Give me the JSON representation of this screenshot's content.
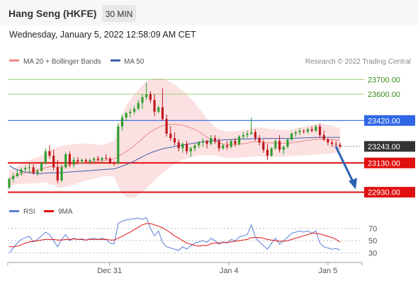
{
  "header": {
    "title": "Hang Seng (HKFE)",
    "interval": "30 MIN",
    "datetime": "Wednesday, January 5, 2022 12:58:09 AM CET"
  },
  "legend": {
    "ma20": "MA 20 + Bollinger Bands",
    "ma50": "MA 50",
    "credit": "Research © 2022 Trading Central",
    "rsi": "RSI",
    "ma9": "9MA"
  },
  "colors": {
    "bullish": "#2e9e2e",
    "bearish": "#c0151b",
    "ma20": "#ee8888",
    "bollinger": "#fbe1e1",
    "ma50": "#3f5fae",
    "resistance": "#2f67e6",
    "support": "#e01010",
    "target": "#9bd17a",
    "rsi": "#5b7fd6",
    "rsi_ma": "#e01010",
    "arrow": "#2d62b3",
    "current": "#333333"
  },
  "chart_data": [
    {
      "type": "candlestick",
      "x_ticks": [
        "Dec 31",
        "Jan 4",
        "Jan 5"
      ],
      "ylim": [
        22880,
        23760
      ],
      "levels": [
        {
          "label": "23700.00",
          "value": 23700,
          "kind": "target"
        },
        {
          "label": "23600.00",
          "value": 23600,
          "kind": "target"
        },
        {
          "label": "23420.00",
          "value": 23420,
          "kind": "resistance"
        },
        {
          "label": "23243.00",
          "value": 23243,
          "kind": "current"
        },
        {
          "label": "23130.00",
          "value": 23130,
          "kind": "support"
        },
        {
          "label": "22930.00",
          "value": 22930,
          "kind": "support"
        }
      ],
      "ohlc": [
        [
          22960,
          23030,
          22950,
          23020
        ],
        [
          23020,
          23060,
          23000,
          23040
        ],
        [
          23040,
          23080,
          23030,
          23060
        ],
        [
          23060,
          23100,
          23040,
          23085
        ],
        [
          23085,
          23110,
          23070,
          23095
        ],
        [
          23095,
          23130,
          23060,
          23100
        ],
        [
          23100,
          23120,
          23050,
          23060
        ],
        [
          23060,
          23090,
          23040,
          23075
        ],
        [
          23075,
          23140,
          23070,
          23130
        ],
        [
          23130,
          23230,
          23120,
          23210
        ],
        [
          23210,
          23250,
          23160,
          23180
        ],
        [
          23180,
          23220,
          23080,
          23100
        ],
        [
          23100,
          23150,
          22990,
          23010
        ],
        [
          23010,
          23120,
          23000,
          23100
        ],
        [
          23100,
          23200,
          23090,
          23190
        ],
        [
          23190,
          23210,
          23100,
          23120
        ],
        [
          23120,
          23170,
          23100,
          23150
        ],
        [
          23150,
          23170,
          23120,
          23140
        ],
        [
          23140,
          23160,
          23120,
          23150
        ],
        [
          23150,
          23160,
          23130,
          23140
        ],
        [
          23140,
          23160,
          23120,
          23150
        ],
        [
          23150,
          23170,
          23130,
          23160
        ],
        [
          23160,
          23180,
          23140,
          23150
        ],
        [
          23150,
          23170,
          23130,
          23165
        ],
        [
          23165,
          23190,
          23150,
          23160
        ],
        [
          23160,
          23170,
          23120,
          23130
        ],
        [
          23130,
          23140,
          23110,
          23125
        ],
        [
          23125,
          23400,
          23120,
          23380
        ],
        [
          23380,
          23460,
          23350,
          23440
        ],
        [
          23440,
          23480,
          23420,
          23470
        ],
        [
          23470,
          23500,
          23440,
          23480
        ],
        [
          23480,
          23520,
          23460,
          23500
        ],
        [
          23500,
          23560,
          23490,
          23540
        ],
        [
          23540,
          23600,
          23500,
          23580
        ],
        [
          23580,
          23680,
          23560,
          23600
        ],
        [
          23600,
          23620,
          23540,
          23560
        ],
        [
          23560,
          23600,
          23450,
          23480
        ],
        [
          23480,
          23520,
          23470,
          23510
        ],
        [
          23510,
          23640,
          23420,
          23430
        ],
        [
          23430,
          23460,
          23310,
          23330
        ],
        [
          23330,
          23380,
          23280,
          23300
        ],
        [
          23300,
          23340,
          23250,
          23270
        ],
        [
          23270,
          23290,
          23210,
          23230
        ],
        [
          23230,
          23270,
          23200,
          23260
        ],
        [
          23260,
          23280,
          23190,
          23210
        ],
        [
          23210,
          23240,
          23170,
          23230
        ],
        [
          23230,
          23260,
          23210,
          23250
        ],
        [
          23250,
          23280,
          23230,
          23270
        ],
        [
          23270,
          23300,
          23240,
          23280
        ],
        [
          23280,
          23290,
          23230,
          23260
        ],
        [
          23260,
          23320,
          23250,
          23300
        ],
        [
          23300,
          23320,
          23260,
          23280
        ],
        [
          23280,
          23300,
          23210,
          23230
        ],
        [
          23230,
          23260,
          23220,
          23250
        ],
        [
          23250,
          23280,
          23220,
          23240
        ],
        [
          23240,
          23290,
          23230,
          23280
        ],
        [
          23280,
          23300,
          23240,
          23260
        ],
        [
          23260,
          23320,
          23250,
          23310
        ],
        [
          23310,
          23340,
          23290,
          23320
        ],
        [
          23320,
          23350,
          23300,
          23330
        ],
        [
          23330,
          23440,
          23320,
          23340
        ],
        [
          23340,
          23360,
          23280,
          23300
        ],
        [
          23300,
          23320,
          23250,
          23270
        ],
        [
          23270,
          23290,
          23200,
          23220
        ],
        [
          23220,
          23260,
          23150,
          23180
        ],
        [
          23180,
          23240,
          23170,
          23230
        ],
        [
          23230,
          23290,
          23220,
          23280
        ],
        [
          23280,
          23320,
          23200,
          23220
        ],
        [
          23220,
          23250,
          23190,
          23240
        ],
        [
          23240,
          23300,
          23230,
          23290
        ],
        [
          23290,
          23340,
          23280,
          23330
        ],
        [
          23330,
          23350,
          23310,
          23340
        ],
        [
          23340,
          23370,
          23320,
          23350
        ],
        [
          23350,
          23360,
          23330,
          23345
        ],
        [
          23345,
          23370,
          23330,
          23360
        ],
        [
          23360,
          23380,
          23340,
          23350
        ],
        [
          23350,
          23390,
          23340,
          23380
        ],
        [
          23380,
          23400,
          23300,
          23320
        ],
        [
          23320,
          23350,
          23280,
          23290
        ],
        [
          23290,
          23300,
          23250,
          23270
        ],
        [
          23270,
          23290,
          23240,
          23260
        ],
        [
          23260,
          23280,
          23240,
          23255
        ],
        [
          23255,
          23270,
          23230,
          23243
        ]
      ],
      "ma20": [
        23020,
        23035,
        23048,
        23056,
        23063,
        23070,
        23075,
        23080,
        23088,
        23098,
        23104,
        23106,
        23100,
        23102,
        23110,
        23114,
        23120,
        23126,
        23132,
        23136,
        23138,
        23141,
        23142,
        23144,
        23150,
        23154,
        23158,
        23175,
        23190,
        23208,
        23227,
        23247,
        23270,
        23296,
        23322,
        23342,
        23358,
        23372,
        23384,
        23390,
        23393,
        23393,
        23391,
        23388,
        23380,
        23370,
        23358,
        23344,
        23326,
        23306,
        23290,
        23279,
        23268,
        23260,
        23255,
        23254,
        23255,
        23257,
        23261,
        23265,
        23272,
        23274,
        23274,
        23272,
        23268,
        23266,
        23266,
        23265,
        23264,
        23265,
        23268,
        23272,
        23276,
        23280,
        23284,
        23287,
        23291,
        23292,
        23293,
        23292,
        23290,
        23288,
        23285
      ],
      "bb_upper": [
        23080,
        23090,
        23110,
        23125,
        23140,
        23150,
        23160,
        23170,
        23180,
        23200,
        23220,
        23230,
        23240,
        23245,
        23250,
        23255,
        23258,
        23260,
        23262,
        23262,
        23260,
        23258,
        23255,
        23250,
        23260,
        23270,
        23280,
        23380,
        23460,
        23520,
        23560,
        23600,
        23630,
        23660,
        23690,
        23700,
        23710,
        23705,
        23710,
        23695,
        23680,
        23665,
        23645,
        23625,
        23600,
        23570,
        23540,
        23505,
        23470,
        23430,
        23400,
        23375,
        23360,
        23350,
        23345,
        23345,
        23345,
        23350,
        23355,
        23360,
        23370,
        23372,
        23372,
        23370,
        23366,
        23360,
        23360,
        23358,
        23356,
        23356,
        23360,
        23365,
        23372,
        23378,
        23385,
        23390,
        23395,
        23395,
        23393,
        23390,
        23385,
        23375,
        23365
      ],
      "bb_lower": [
        22960,
        22980,
        22986,
        22987,
        22986,
        22990,
        22990,
        22990,
        22996,
        22996,
        22988,
        22982,
        22960,
        22959,
        22970,
        22973,
        22982,
        22992,
        23002,
        23010,
        23016,
        23024,
        23029,
        23038,
        23040,
        23038,
        23036,
        22970,
        22920,
        22896,
        22894,
        22894,
        22910,
        22932,
        22954,
        22984,
        23006,
        23039,
        23058,
        23085,
        23106,
        23121,
        23137,
        23151,
        23160,
        23170,
        23176,
        23183,
        23182,
        23182,
        23180,
        23183,
        23176,
        23170,
        23165,
        23163,
        23165,
        23164,
        23167,
        23170,
        23174,
        23176,
        23176,
        23174,
        23170,
        23172,
        23172,
        23172,
        23172,
        23174,
        23176,
        23179,
        23180,
        23182,
        23183,
        23184,
        23187,
        23189,
        23193,
        23194,
        23195,
        23201,
        23205
      ],
      "ma50": [
        23110,
        23095,
        23083,
        23074,
        23067,
        23063,
        23060,
        23058,
        23058,
        23060,
        23062,
        23063,
        23062,
        23063,
        23066,
        23068,
        23070,
        23072,
        23074,
        23076,
        23078,
        23080,
        23082,
        23084,
        23086,
        23088,
        23090,
        23098,
        23108,
        23118,
        23130,
        23143,
        23158,
        23172,
        23186,
        23198,
        23209,
        23218,
        23226,
        23232,
        23237,
        23242,
        23247,
        23252,
        23257,
        23262,
        23266,
        23270,
        23274,
        23277,
        23280,
        23283,
        23285,
        23287,
        23289,
        23290,
        23291,
        23292,
        23293,
        23294,
        23295,
        23296,
        23297,
        23297,
        23297,
        23297,
        23297,
        23297,
        23297,
        23297,
        23298,
        23299,
        23300,
        23301,
        23302,
        23303,
        23304,
        23305,
        23305,
        23305,
        23305,
        23305,
        23305
      ]
    },
    {
      "type": "line",
      "series": [
        {
          "name": "RSI",
          "values": [
            30,
            38,
            46,
            52,
            55,
            57,
            48,
            52,
            58,
            64,
            60,
            50,
            40,
            52,
            60,
            50,
            54,
            52,
            53,
            51,
            53,
            54,
            52,
            54,
            52,
            46,
            45,
            78,
            82,
            84,
            85,
            86,
            87,
            85,
            88,
            70,
            58,
            66,
            47,
            40,
            38,
            36,
            34,
            40,
            36,
            42,
            46,
            48,
            50,
            47,
            54,
            50,
            44,
            48,
            46,
            52,
            50,
            56,
            58,
            60,
            76,
            56,
            48,
            42,
            36,
            46,
            54,
            44,
            50,
            56,
            62,
            64,
            66,
            64,
            66,
            62,
            66,
            46,
            40,
            38,
            36,
            37,
            35
          ]
        },
        {
          "name": "9MA",
          "values": [
            40,
            40,
            41,
            43,
            46,
            48,
            49,
            50,
            51,
            52,
            52,
            52,
            51,
            51,
            52,
            52,
            53,
            52,
            52,
            51,
            52,
            52,
            52,
            52,
            52,
            51,
            51,
            54,
            57,
            61,
            64,
            68,
            72,
            76,
            78,
            78,
            76,
            74,
            71,
            67,
            63,
            58,
            54,
            50,
            46,
            44,
            42,
            41,
            42,
            42,
            45,
            46,
            46,
            47,
            47,
            48,
            49,
            50,
            51,
            52,
            55,
            55,
            55,
            54,
            52,
            51,
            50,
            49,
            49,
            50,
            52,
            54,
            56,
            58,
            60,
            62,
            62,
            61,
            59,
            57,
            55,
            52,
            48
          ]
        }
      ],
      "ylim": [
        20,
        85
      ],
      "y_ticks": [
        "70",
        "50",
        "30"
      ],
      "y_tick_values": [
        70,
        50,
        30
      ],
      "x_ticks": [
        "Dec 31",
        "Jan 4",
        "Jan 5"
      ]
    }
  ]
}
